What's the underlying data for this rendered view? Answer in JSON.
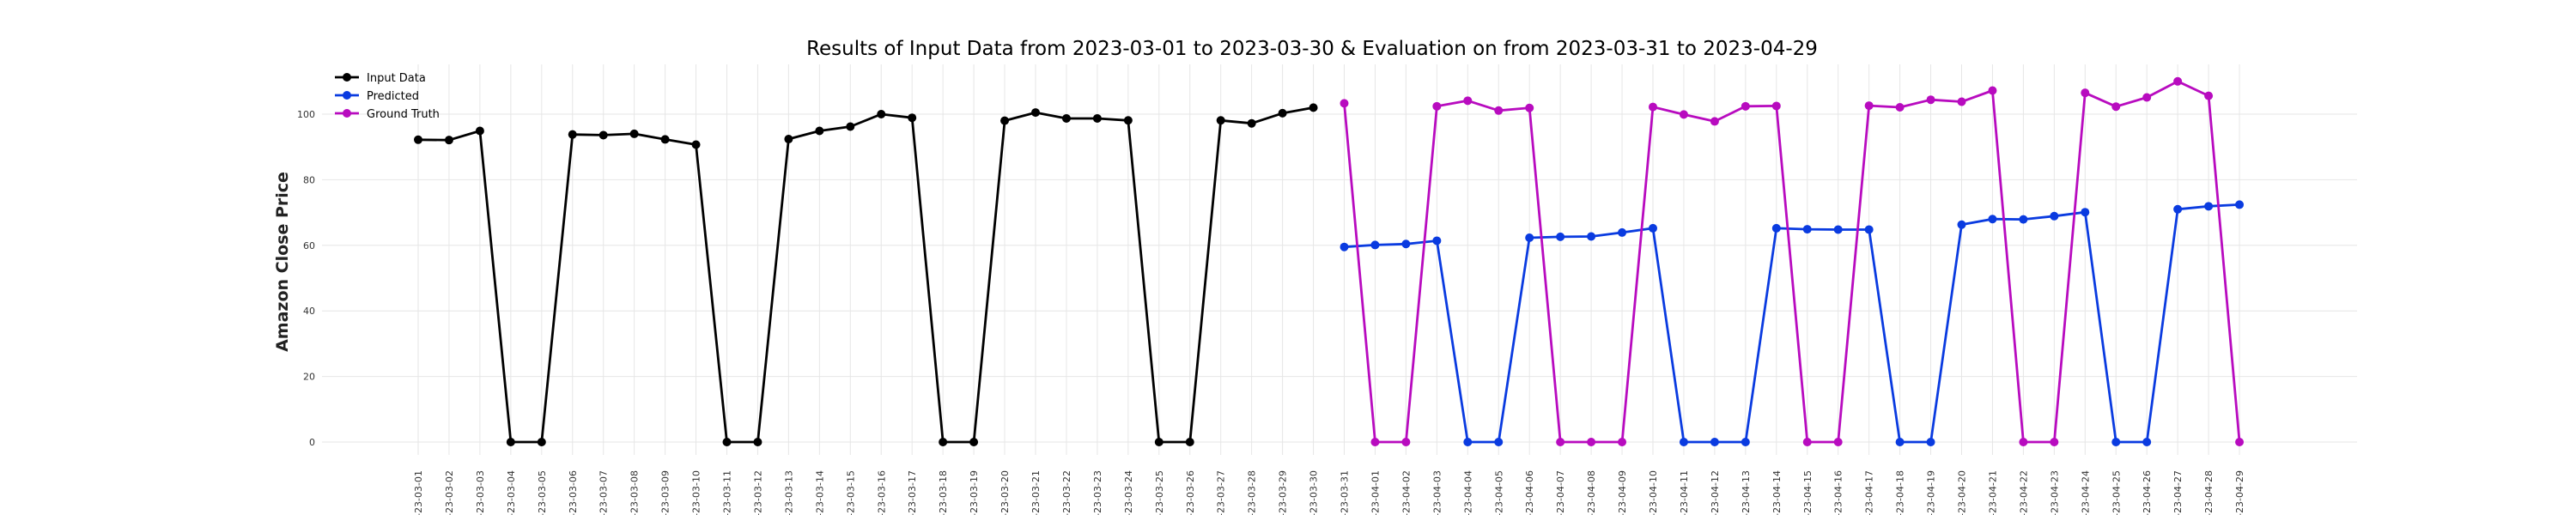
{
  "chart_data": {
    "type": "line",
    "title": "Results of Input Data from 2023-03-01 to 2023-03-30 & Evaluation on from 2023-03-31 to 2023-04-29",
    "xlabel": "",
    "ylabel": "Amazon Close Price",
    "ylim": [
      -5,
      115
    ],
    "yticks": [
      0,
      20,
      40,
      60,
      80,
      100
    ],
    "grid": true,
    "legend_position": "top-left",
    "categories": [
      "2023-03-01",
      "2023-03-02",
      "2023-03-03",
      "2023-03-04",
      "2023-03-05",
      "2023-03-06",
      "2023-03-07",
      "2023-03-08",
      "2023-03-09",
      "2023-03-10",
      "2023-03-11",
      "2023-03-12",
      "2023-03-13",
      "2023-03-14",
      "2023-03-15",
      "2023-03-16",
      "2023-03-17",
      "2023-03-18",
      "2023-03-19",
      "2023-03-20",
      "2023-03-21",
      "2023-03-22",
      "2023-03-23",
      "2023-03-24",
      "2023-03-25",
      "2023-03-26",
      "2023-03-27",
      "2023-03-28",
      "2023-03-29",
      "2023-03-30",
      "2023-03-31",
      "2023-04-01",
      "2023-04-02",
      "2023-04-03",
      "2023-04-04",
      "2023-04-05",
      "2023-04-06",
      "2023-04-07",
      "2023-04-08",
      "2023-04-09",
      "2023-04-10",
      "2023-04-11",
      "2023-04-12",
      "2023-04-13",
      "2023-04-14",
      "2023-04-15",
      "2023-04-16",
      "2023-04-17",
      "2023-04-18",
      "2023-04-19",
      "2023-04-20",
      "2023-04-21",
      "2023-04-22",
      "2023-04-23",
      "2023-04-24",
      "2023-04-25",
      "2023-04-26",
      "2023-04-27",
      "2023-04-28",
      "2023-04-29"
    ],
    "xtick_labels": [
      "-23-03-01",
      "-23-03-02",
      "-23-03-03",
      "-23-03-04",
      "-23-03-05",
      "-23-03-06",
      "-23-03-07",
      "-23-03-08",
      "-23-03-09",
      "-23-03-10",
      "-23-03-11",
      "-23-03-12",
      "-23-03-13",
      "-23-03-14",
      "-23-03-15",
      "-23-03-16",
      "-23-03-17",
      "-23-03-18",
      "-23-03-19",
      "-23-03-20",
      "-23-03-21",
      "-23-03-22",
      "-23-03-23",
      "-23-03-24",
      "-23-03-25",
      "-23-03-26",
      "-23-03-27",
      "-23-03-28",
      "-23-03-29",
      "-23-03-30",
      "-23-03-31",
      "-23-04-01",
      "-23-04-02",
      "-23-04-03",
      "-23-04-04",
      "-23-04-05",
      "-23-04-06",
      "-23-04-07",
      "-23-04-08",
      "-23-04-09",
      "-23-04-10",
      "-23-04-11",
      "-23-04-12",
      "-23-04-13",
      "-23-04-14",
      "-23-04-15",
      "-23-04-16",
      "-23-04-17",
      "-23-04-18",
      "-23-04-19",
      "-23-04-20",
      "-23-04-21",
      "-23-04-22",
      "-23-04-23",
      "-23-04-24",
      "-23-04-25",
      "-23-04-26",
      "-23-04-27",
      "-23-04-28",
      "-23-04-29"
    ],
    "series": [
      {
        "name": "Input Data",
        "color": "#000000",
        "x": [
          "2023-03-01",
          "2023-03-02",
          "2023-03-03",
          "2023-03-04",
          "2023-03-05",
          "2023-03-06",
          "2023-03-07",
          "2023-03-08",
          "2023-03-09",
          "2023-03-10",
          "2023-03-11",
          "2023-03-12",
          "2023-03-13",
          "2023-03-14",
          "2023-03-15",
          "2023-03-16",
          "2023-03-17",
          "2023-03-18",
          "2023-03-19",
          "2023-03-20",
          "2023-03-21",
          "2023-03-22",
          "2023-03-23",
          "2023-03-24",
          "2023-03-25",
          "2023-03-26",
          "2023-03-27",
          "2023-03-28",
          "2023-03-29",
          "2023-03-30"
        ],
        "values": [
          92.2,
          92.1,
          94.9,
          0,
          0,
          93.8,
          93.6,
          94.0,
          92.3,
          90.7,
          0,
          0,
          92.4,
          94.9,
          96.2,
          100.0,
          98.9,
          0,
          0,
          98.0,
          100.5,
          98.7,
          98.7,
          98.1,
          0,
          0,
          98.1,
          97.2,
          100.3,
          102.0
        ]
      },
      {
        "name": "Predicted",
        "color": "#0a3be0",
        "x": [
          "2023-03-31",
          "2023-04-01",
          "2023-04-02",
          "2023-04-03",
          "2023-04-04",
          "2023-04-05",
          "2023-04-06",
          "2023-04-07",
          "2023-04-08",
          "2023-04-09",
          "2023-04-10",
          "2023-04-11",
          "2023-04-12",
          "2023-04-13",
          "2023-04-14",
          "2023-04-15",
          "2023-04-16",
          "2023-04-17",
          "2023-04-18",
          "2023-04-19",
          "2023-04-20",
          "2023-04-21",
          "2023-04-22",
          "2023-04-23",
          "2023-04-24",
          "2023-04-25",
          "2023-04-26",
          "2023-04-27",
          "2023-04-28",
          "2023-04-29"
        ],
        "values": [
          59.5,
          60.1,
          60.4,
          61.4,
          0,
          0,
          62.3,
          62.6,
          62.7,
          63.9,
          65.2,
          0,
          0,
          0,
          65.2,
          64.9,
          64.8,
          64.8,
          0,
          0,
          66.3,
          68.0,
          67.9,
          68.9,
          70.1,
          0,
          0,
          71.0,
          71.9,
          72.4
        ]
      },
      {
        "name": "Ground Truth",
        "color": "#b80bbf",
        "x": [
          "2023-03-31",
          "2023-04-01",
          "2023-04-02",
          "2023-04-03",
          "2023-04-04",
          "2023-04-05",
          "2023-04-06",
          "2023-04-07",
          "2023-04-08",
          "2023-04-09",
          "2023-04-10",
          "2023-04-11",
          "2023-04-12",
          "2023-04-13",
          "2023-04-14",
          "2023-04-15",
          "2023-04-16",
          "2023-04-17",
          "2023-04-18",
          "2023-04-19",
          "2023-04-20",
          "2023-04-21",
          "2023-04-22",
          "2023-04-23",
          "2023-04-24",
          "2023-04-25",
          "2023-04-26",
          "2023-04-27",
          "2023-04-28",
          "2023-04-29"
        ],
        "values": [
          103.3,
          0,
          0,
          102.4,
          104.1,
          101.1,
          101.9,
          0,
          0,
          0,
          102.2,
          99.9,
          97.8,
          102.4,
          102.5,
          0,
          0,
          102.6,
          102.1,
          104.4,
          103.8,
          107.2,
          0,
          0,
          106.5,
          102.3,
          105.1,
          110.0,
          105.6,
          0
        ]
      }
    ]
  }
}
